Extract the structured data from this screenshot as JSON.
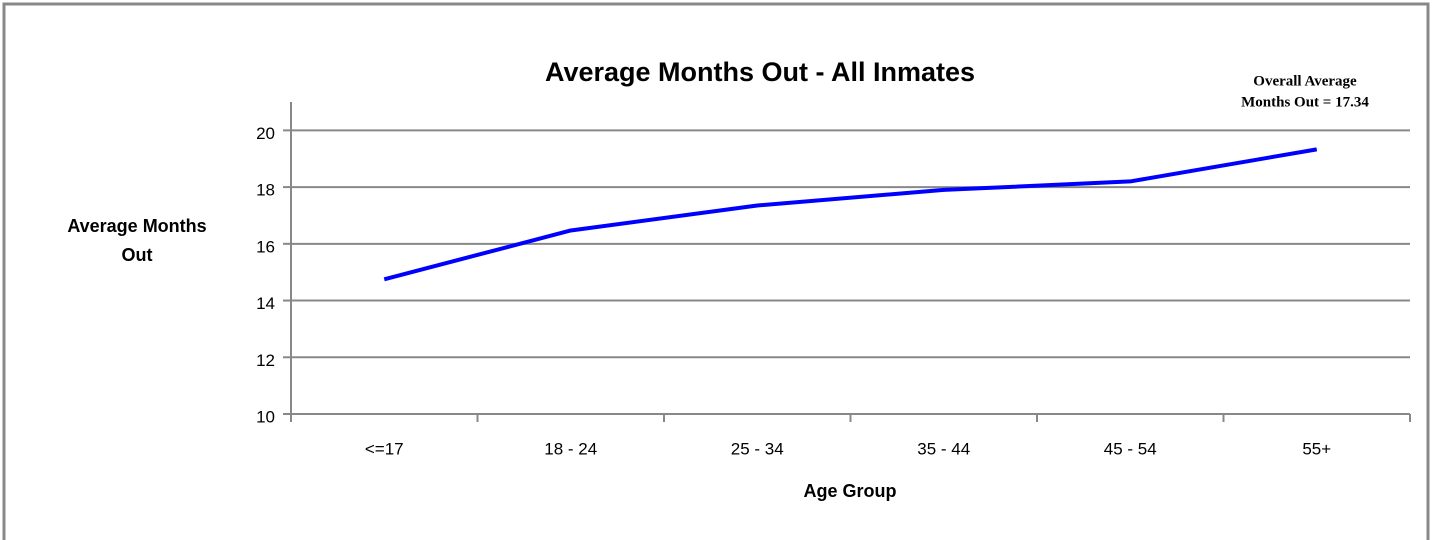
{
  "chart_data": {
    "type": "line",
    "title": "Average Months Out - All Inmates",
    "y_label": [
      "Average Months",
      "Out"
    ],
    "x_label": "Age Group",
    "annotation": [
      "Overall Average",
      "Months Out = 17.34"
    ],
    "categories": [
      "<=17",
      "18 - 24",
      "25 - 34",
      "35 - 44",
      "45 - 54",
      "55+"
    ],
    "series": [
      {
        "name": "Average Months Out",
        "color": "#0000ff",
        "values": [
          14.75,
          16.47,
          17.35,
          17.9,
          18.2,
          19.33
        ]
      }
    ],
    "ylim": [
      10,
      21
    ],
    "yticks": [
      10,
      12,
      14,
      16,
      18,
      20
    ],
    "grid": true
  }
}
